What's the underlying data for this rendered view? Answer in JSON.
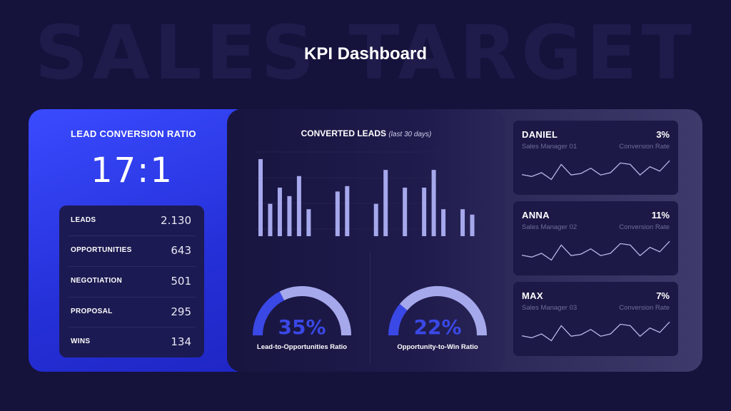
{
  "watermark": "SALES TARGET",
  "title": "KPI Dashboard",
  "lead_conversion": {
    "title": "LEAD CONVERSION RATIO",
    "ratio": "17:1",
    "metrics": [
      {
        "label": "LEADS",
        "value": "2.130"
      },
      {
        "label": "OPPORTUNITIES",
        "value": "643"
      },
      {
        "label": "NEGOTIATION",
        "value": "501"
      },
      {
        "label": "PROPOSAL",
        "value": "295"
      },
      {
        "label": "WINS",
        "value": "134"
      }
    ]
  },
  "converted_leads": {
    "title": "CONVERTED LEADS",
    "subtitle": "(last 30 days)"
  },
  "gauges": [
    {
      "value": "35%",
      "label": "Lead-to-Opportunities Ratio"
    },
    {
      "value": "22%",
      "label": "Opportunity-to-Win Ratio"
    }
  ],
  "reps": [
    {
      "name": "DANIEL",
      "role": "Sales Manager 01",
      "pct": "3%",
      "metric": "Conversion Rate"
    },
    {
      "name": "ANNA",
      "role": "Sales Manager 02",
      "pct": "11%",
      "metric": "Conversion Rate"
    },
    {
      "name": "MAX",
      "role": "Sales Manager 03",
      "pct": "7%",
      "metric": "Conversion Rate"
    }
  ],
  "colors": {
    "bar": "#a6a8ec",
    "gauge_fill": "#3a48e6",
    "gauge_track": "#a6a8ec",
    "gauge_text": "#3a48e6",
    "spark": "#b8b8e8"
  },
  "chart_data": [
    {
      "type": "bar",
      "title": "CONVERTED LEADS",
      "subtitle": "(last 30 days)",
      "ylim": [
        0,
        100
      ],
      "values": [
        100,
        42,
        63,
        52,
        78,
        35,
        0,
        0,
        58,
        65,
        0,
        0,
        42,
        86,
        0,
        63,
        0,
        63,
        86,
        35,
        0,
        35,
        28
      ],
      "grid": true
    },
    {
      "type": "pie",
      "title": "Lead-to-Opportunities Ratio",
      "values": [
        35
      ],
      "max": 100
    },
    {
      "type": "pie",
      "title": "Opportunity-to-Win Ratio",
      "values": [
        22
      ],
      "max": 100
    },
    {
      "type": "line",
      "title": "DANIEL",
      "values": [
        35,
        30,
        40,
        22,
        62,
        34,
        38,
        52,
        34,
        40,
        66,
        62,
        34,
        56,
        44,
        72
      ]
    },
    {
      "type": "line",
      "title": "ANNA",
      "values": [
        35,
        30,
        40,
        22,
        62,
        34,
        38,
        52,
        34,
        40,
        66,
        62,
        34,
        56,
        44,
        72
      ]
    },
    {
      "type": "line",
      "title": "MAX",
      "values": [
        35,
        30,
        40,
        22,
        62,
        34,
        38,
        52,
        34,
        40,
        66,
        62,
        34,
        56,
        44,
        72
      ]
    }
  ]
}
